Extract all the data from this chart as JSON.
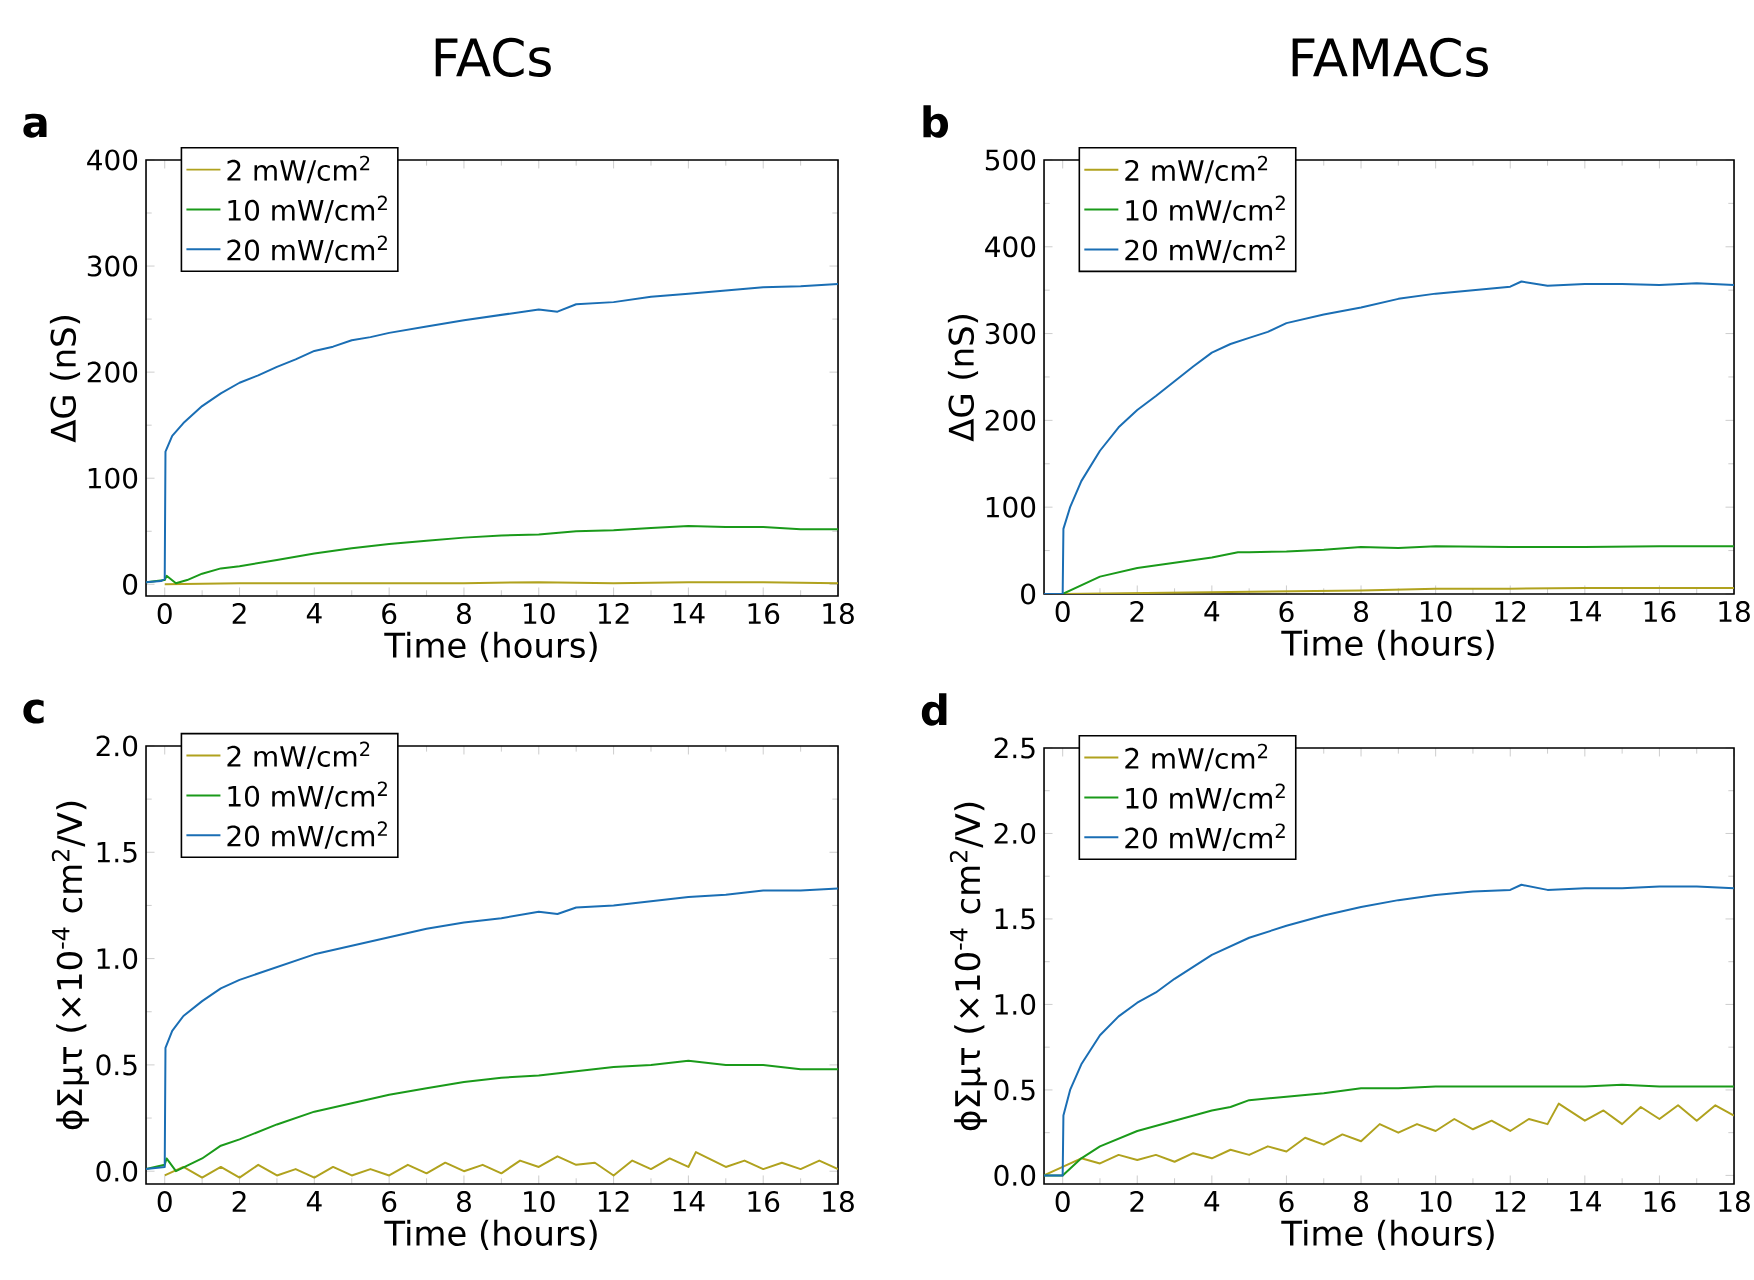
{
  "chart_data": [
    {
      "type": "line",
      "title": "FACs",
      "annotations": [
        "a"
      ],
      "xlabel": "Time (hours)",
      "ylabel": "ΔG (nS)",
      "xlim": [
        -0.5,
        18
      ],
      "xticks": [
        0,
        2,
        4,
        6,
        8,
        10,
        12,
        14,
        16,
        18
      ],
      "ylim": [
        -11,
        400
      ],
      "yticks": [
        0,
        100,
        200,
        300,
        400
      ],
      "legend": "top left",
      "grid": false,
      "series": [
        {
          "name": "2 mW/cm$^{2}$",
          "color": "#b0a21e",
          "x": [
            0,
            2,
            4,
            6,
            8,
            10,
            12,
            14,
            16,
            18
          ],
          "values": [
            0,
            1,
            1,
            1,
            1,
            2,
            1,
            2,
            2,
            1
          ]
        },
        {
          "name": "10 mW/cm$^{2}$",
          "color": "#1a9a1a",
          "x": [
            -0.5,
            0,
            0.05,
            0.3,
            0.6,
            1,
            1.5,
            2,
            3,
            4,
            5,
            6,
            7,
            8,
            9,
            10,
            11,
            12,
            13,
            14,
            15,
            16,
            17,
            18
          ],
          "values": [
            2,
            4,
            8,
            1,
            4,
            10,
            15,
            17,
            23,
            29,
            34,
            38,
            41,
            44,
            46,
            47,
            50,
            51,
            53,
            55,
            54,
            54,
            52,
            52
          ]
        },
        {
          "name": "20 mW/cm$^{2}$",
          "color": "#1a6eb4",
          "x": [
            -0.5,
            -0.1,
            0,
            0.02,
            0.2,
            0.5,
            1,
            1.5,
            2,
            2.5,
            3,
            3.5,
            4,
            4.5,
            5,
            5.5,
            6,
            7,
            8,
            9,
            10,
            10.5,
            11,
            12,
            13,
            14,
            15,
            16,
            17,
            18
          ],
          "values": [
            2,
            3,
            5,
            125,
            140,
            152,
            168,
            180,
            190,
            197,
            205,
            212,
            220,
            224,
            230,
            233,
            237,
            243,
            249,
            254,
            259,
            257,
            264,
            266,
            271,
            274,
            277,
            280,
            281,
            283
          ]
        }
      ]
    },
    {
      "type": "line",
      "title": "FAMACs",
      "annotations": [
        "b"
      ],
      "xlabel": "Time (hours)",
      "ylabel": "ΔG (nS)",
      "xlim": [
        -0.5,
        18
      ],
      "xticks": [
        0,
        2,
        4,
        6,
        8,
        10,
        12,
        14,
        16,
        18
      ],
      "ylim": [
        0,
        500
      ],
      "yticks": [
        0,
        100,
        200,
        300,
        400,
        500
      ],
      "legend": "top left",
      "grid": false,
      "series": [
        {
          "name": "2 mW/cm$^{2}$",
          "color": "#b0a21e",
          "x": [
            0,
            2,
            4,
            6,
            8,
            10,
            12,
            14,
            16,
            18
          ],
          "values": [
            0,
            1,
            2,
            3,
            4,
            6,
            6,
            7,
            7,
            7
          ]
        },
        {
          "name": "10 mW/cm$^{2}$",
          "color": "#1a9a1a",
          "x": [
            -0.5,
            0,
            0.5,
            1,
            2,
            3,
            4,
            4.7,
            5,
            6,
            7,
            8,
            9,
            10,
            12,
            14,
            16,
            18
          ],
          "values": [
            0,
            0,
            10,
            20,
            30,
            36,
            42,
            48,
            48,
            49,
            51,
            54,
            53,
            55,
            54,
            54,
            55,
            55
          ]
        },
        {
          "name": "20 mW/cm$^{2}$",
          "color": "#1a6eb4",
          "x": [
            -0.5,
            0,
            0.02,
            0.2,
            0.5,
            1,
            1.5,
            2,
            2.5,
            3,
            3.5,
            4,
            4.5,
            5,
            5.5,
            6,
            7,
            8,
            9,
            10,
            11,
            12,
            12.3,
            13,
            14,
            15,
            16,
            17,
            18
          ],
          "values": [
            0,
            0,
            75,
            100,
            130,
            165,
            192,
            212,
            228,
            245,
            262,
            278,
            288,
            295,
            302,
            312,
            322,
            330,
            340,
            346,
            350,
            354,
            360,
            355,
            357,
            357,
            356,
            358,
            356
          ]
        }
      ]
    },
    {
      "type": "line",
      "annotations": [
        "c"
      ],
      "xlabel": "Time (hours)",
      "ylabel": "ϕΣμτ (×10$^{-4}$ cm$^{2}$/V)",
      "xlim": [
        -0.5,
        18
      ],
      "xticks": [
        0,
        2,
        4,
        6,
        8,
        10,
        12,
        14,
        16,
        18
      ],
      "ylim": [
        -0.06,
        2.0
      ],
      "yticks": [
        {
          "value": 0,
          "label": "0.0"
        },
        0.5,
        {
          "value": 1,
          "label": "1.0"
        },
        1.5,
        {
          "value": 2,
          "label": "2.0"
        }
      ],
      "legend": "top left",
      "grid": false,
      "series": [
        {
          "name": "2 mW/cm$^{2}$",
          "color": "#b0a21e",
          "x": [
            0,
            0.5,
            1,
            1.5,
            2,
            2.5,
            3,
            3.5,
            4,
            4.5,
            5,
            5.5,
            6,
            6.5,
            7,
            7.5,
            8,
            8.5,
            9,
            9.5,
            10,
            10.5,
            11,
            11.5,
            12,
            12.5,
            13,
            13.5,
            14,
            14.2,
            15,
            15.5,
            16,
            16.5,
            17,
            17.5,
            18
          ],
          "values": [
            -0.02,
            0.02,
            -0.03,
            0.02,
            -0.03,
            0.03,
            -0.02,
            0.01,
            -0.03,
            0.02,
            -0.02,
            0.01,
            -0.02,
            0.03,
            -0.01,
            0.04,
            0.0,
            0.03,
            -0.01,
            0.05,
            0.02,
            0.07,
            0.03,
            0.04,
            -0.02,
            0.05,
            0.01,
            0.06,
            0.02,
            0.09,
            0.02,
            0.05,
            0.01,
            0.04,
            0.01,
            0.05,
            0.01
          ]
        },
        {
          "name": "10 mW/cm$^{2}$",
          "color": "#1a9a1a",
          "x": [
            -0.5,
            0,
            0.05,
            0.3,
            1,
            1.5,
            2,
            3,
            4,
            5,
            6,
            7,
            8,
            9,
            10,
            11,
            12,
            13,
            14,
            15,
            16,
            17,
            18
          ],
          "values": [
            0.01,
            0.03,
            0.06,
            0.0,
            0.06,
            0.12,
            0.15,
            0.22,
            0.28,
            0.32,
            0.36,
            0.39,
            0.42,
            0.44,
            0.45,
            0.47,
            0.49,
            0.5,
            0.52,
            0.5,
            0.5,
            0.48,
            0.48
          ]
        },
        {
          "name": "20 mW/cm$^{2}$",
          "color": "#1a6eb4",
          "x": [
            -0.5,
            0,
            0.02,
            0.2,
            0.5,
            1,
            1.5,
            2,
            3,
            4,
            5,
            6,
            7,
            8,
            9,
            10,
            10.5,
            11,
            12,
            13,
            14,
            15,
            16,
            17,
            18
          ],
          "values": [
            0.01,
            0.02,
            0.58,
            0.66,
            0.73,
            0.8,
            0.86,
            0.9,
            0.96,
            1.02,
            1.06,
            1.1,
            1.14,
            1.17,
            1.19,
            1.22,
            1.21,
            1.24,
            1.25,
            1.27,
            1.29,
            1.3,
            1.32,
            1.32,
            1.33
          ]
        }
      ]
    },
    {
      "type": "line",
      "annotations": [
        "d"
      ],
      "xlabel": "Time (hours)",
      "ylabel": "ϕΣμτ (×10$^{-4}$ cm$^{2}$/V)",
      "xlim": [
        -0.5,
        18
      ],
      "xticks": [
        0,
        2,
        4,
        6,
        8,
        10,
        12,
        14,
        16,
        18
      ],
      "ylim": [
        -0.05,
        2.5
      ],
      "yticks": [
        {
          "value": 0,
          "label": "0.0"
        },
        0.5,
        {
          "value": 1,
          "label": "1.0"
        },
        1.5,
        {
          "value": 2,
          "label": "2.0"
        },
        2.5
      ],
      "legend": "top left",
      "grid": false,
      "series": [
        {
          "name": "2 mW/cm$^{2}$",
          "color": "#b0a21e",
          "x": [
            -0.5,
            0,
            0.5,
            1,
            1.5,
            2,
            2.5,
            3,
            3.5,
            4,
            4.5,
            5,
            5.5,
            6,
            6.5,
            7,
            7.5,
            8,
            8.5,
            9,
            9.5,
            10,
            10.5,
            11,
            11.5,
            12,
            12.5,
            13,
            13.3,
            14,
            14.5,
            15,
            15.5,
            16,
            16.5,
            17,
            17.5,
            18
          ],
          "values": [
            0.0,
            0.05,
            0.1,
            0.07,
            0.12,
            0.09,
            0.12,
            0.08,
            0.13,
            0.1,
            0.15,
            0.12,
            0.17,
            0.14,
            0.22,
            0.18,
            0.24,
            0.2,
            0.3,
            0.25,
            0.3,
            0.26,
            0.33,
            0.27,
            0.32,
            0.26,
            0.33,
            0.3,
            0.42,
            0.32,
            0.38,
            0.3,
            0.4,
            0.33,
            0.41,
            0.32,
            0.41,
            0.35
          ]
        },
        {
          "name": "10 mW/cm$^{2}$",
          "color": "#1a9a1a",
          "x": [
            -0.5,
            0,
            0.5,
            1,
            2,
            3,
            4,
            4.5,
            5,
            6,
            7,
            8,
            9,
            10,
            12,
            14,
            15,
            16,
            18
          ],
          "values": [
            0,
            0,
            0.1,
            0.17,
            0.26,
            0.32,
            0.38,
            0.4,
            0.44,
            0.46,
            0.48,
            0.51,
            0.51,
            0.52,
            0.52,
            0.52,
            0.53,
            0.52,
            0.52
          ]
        },
        {
          "name": "20 mW/cm$^{2}$",
          "color": "#1a6eb4",
          "x": [
            -0.5,
            0,
            0.02,
            0.2,
            0.5,
            1,
            1.5,
            2,
            2.5,
            3,
            3.5,
            4,
            4.5,
            5,
            6,
            7,
            8,
            9,
            10,
            11,
            12,
            12.3,
            13,
            14,
            15,
            16,
            17,
            18
          ],
          "values": [
            0,
            0,
            0.35,
            0.5,
            0.65,
            0.82,
            0.93,
            1.01,
            1.07,
            1.15,
            1.22,
            1.29,
            1.34,
            1.39,
            1.46,
            1.52,
            1.57,
            1.61,
            1.64,
            1.66,
            1.67,
            1.7,
            1.67,
            1.68,
            1.68,
            1.69,
            1.69,
            1.68
          ]
        }
      ]
    }
  ]
}
